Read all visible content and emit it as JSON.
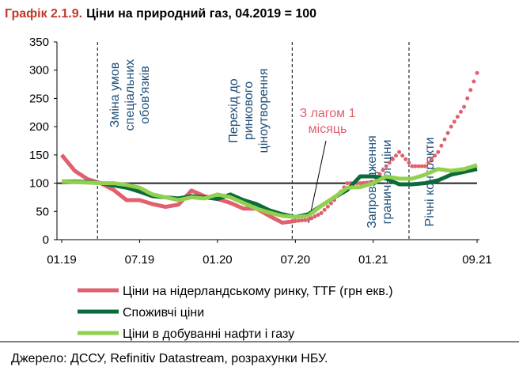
{
  "chart_data": {
    "type": "line",
    "title_label": "Графік 2.1.9.",
    "title": "Ціни на природний газ, 04.2019 = 100",
    "categories": [
      "01.19",
      null,
      null,
      null,
      null,
      null,
      "07.19",
      null,
      null,
      null,
      null,
      null,
      "01.20",
      null,
      null,
      null,
      null,
      null,
      "07.20",
      null,
      null,
      null,
      null,
      null,
      "01.21",
      null,
      null,
      null,
      null,
      null,
      null,
      null,
      "09.21"
    ],
    "series": [
      {
        "name": "Ціни на нідерландському ринку, TTF (грн екв.)",
        "color": "#e0606e",
        "dotted_from": "07.20",
        "values": [
          150,
          122,
          107,
          100,
          88,
          70,
          70,
          63,
          58,
          62,
          87,
          77,
          72,
          65,
          55,
          55,
          42,
          30,
          33,
          35,
          47,
          70,
          100,
          100,
          102,
          130,
          155,
          130,
          130,
          155,
          200,
          235,
          295
        ]
      },
      {
        "name": "Споживчі ціни",
        "color": "#0b6b3a",
        "values": [
          103,
          103,
          102,
          100,
          96,
          92,
          85,
          77,
          75,
          73,
          77,
          75,
          72,
          80,
          70,
          63,
          52,
          45,
          40,
          45,
          60,
          75,
          88,
          112,
          112,
          108,
          98,
          98,
          100,
          105,
          115,
          120,
          125
        ]
      },
      {
        "name": "Ціни в добуванні нафти і газу",
        "color": "#92d050",
        "values": [
          103,
          102,
          101,
          100,
          100,
          97,
          92,
          80,
          75,
          70,
          75,
          73,
          80,
          75,
          65,
          55,
          48,
          42,
          40,
          42,
          60,
          75,
          92,
          93,
          100,
          112,
          108,
          108,
          115,
          125,
          122,
          125,
          132
        ]
      }
    ],
    "reference_line": 100,
    "ylim": [
      0,
      350
    ],
    "yticks": [
      0,
      50,
      100,
      150,
      200,
      250,
      300,
      350
    ],
    "annotations": {
      "special_duties": [
        "Зміна умов",
        "спеціальних",
        "обов'язків"
      ],
      "market_pricing": [
        "Перехід до",
        "ринкового",
        "ціноутворення"
      ],
      "price_cap": [
        "Запровадження",
        "граничної ціни"
      ],
      "annual_contracts": [
        "Річні контракти"
      ],
      "lag": [
        "З лагом 1",
        "місяць"
      ]
    },
    "source": "Джерело: ДССУ, Refinitiv Datastream, розрахунки НБУ."
  }
}
